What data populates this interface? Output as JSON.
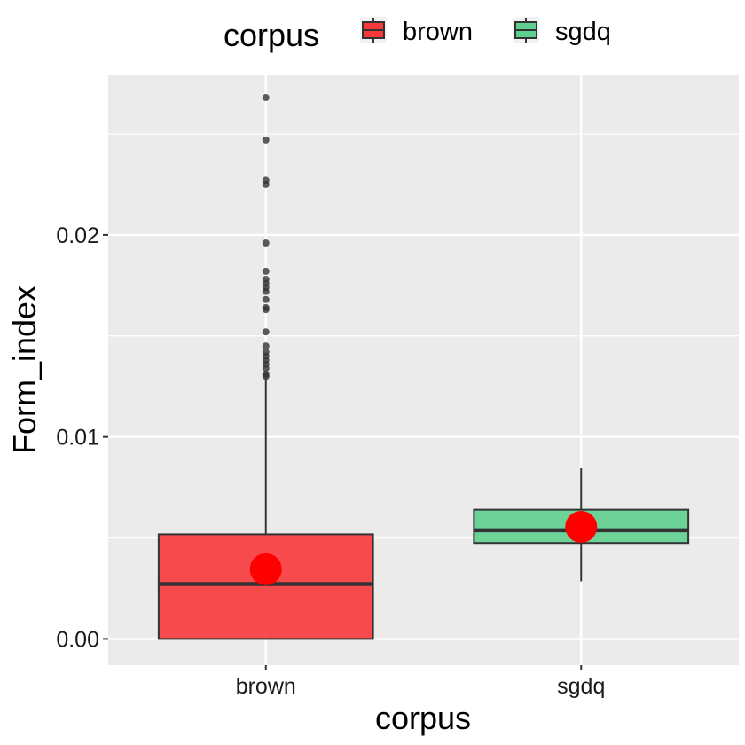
{
  "chart_data": {
    "type": "boxplot",
    "xlabel": "corpus",
    "ylabel": "Form_index",
    "ylim": [
      -0.0013,
      0.0279
    ],
    "y_ticks": [
      0.0,
      0.01,
      0.02
    ],
    "y_tick_labels": [
      "0.00",
      "0.01",
      "0.02"
    ],
    "categories": [
      "brown",
      "sgdq"
    ],
    "grid": true,
    "legend": {
      "title": "corpus",
      "position": "top",
      "entries": [
        {
          "label": "brown",
          "color": "#f8393b"
        },
        {
          "label": "sgdq",
          "color": "#5fcf8f"
        }
      ]
    },
    "boxes": [
      {
        "category": "brown",
        "color": "#f8393b",
        "lower_whisker": 0.0,
        "q1": 0.0,
        "median": 0.00272,
        "q3": 0.00518,
        "upper_whisker": 0.0129,
        "mean": 0.00345,
        "outliers": [
          0.0268,
          0.0247,
          0.0227,
          0.0225,
          0.0196,
          0.0182,
          0.0178,
          0.0176,
          0.0174,
          0.0172,
          0.0168,
          0.0164,
          0.0163,
          0.0152,
          0.0145,
          0.0142,
          0.014,
          0.0138,
          0.0136,
          0.0134,
          0.0131,
          0.013
        ]
      },
      {
        "category": "sgdq",
        "color": "#5fcf8f",
        "lower_whisker": 0.00285,
        "q1": 0.00475,
        "median": 0.00538,
        "q3": 0.0064,
        "upper_whisker": 0.00845,
        "mean": 0.00555,
        "outliers": []
      }
    ],
    "mean_marker_color": "#ff0000"
  }
}
